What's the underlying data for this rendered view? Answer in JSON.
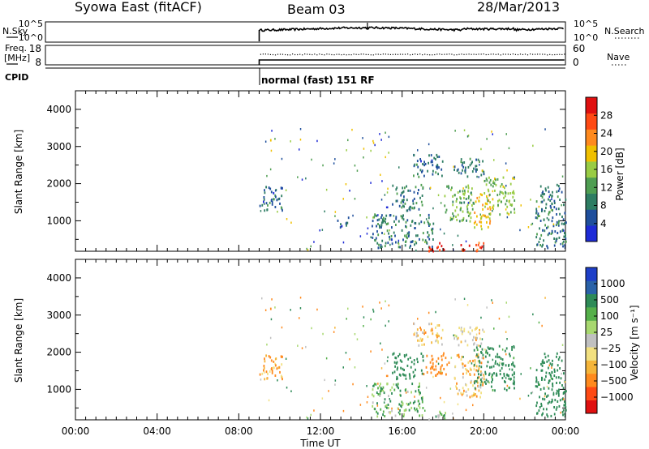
{
  "header": {
    "title": "Syowa East (fitACF)",
    "beam": "Beam 03",
    "date": "28/Mar/2013"
  },
  "noise_panel": {
    "left_label": "N.Sky",
    "left_ticks": [
      "10^5",
      "10^0"
    ],
    "right_ticks": [
      "10^5",
      "10^0"
    ],
    "right_label": "N.Search"
  },
  "freq_panel": {
    "left_label_line1": "Freq.",
    "left_label_line2": "[MHz]",
    "left_ticks": [
      "18",
      "8"
    ],
    "right_ticks": [
      "60",
      "0"
    ],
    "right_label": "Nave"
  },
  "cpid": {
    "label": "CPID",
    "program": "normal (fast) 151 RF"
  },
  "colors": {
    "power_scale": [
      "#1e2bd6",
      "#1f4f9c",
      "#2e7d63",
      "#4f9e52",
      "#99cc44",
      "#f0c000",
      "#ff8a1e",
      "#ff4a14",
      "#e01010"
    ],
    "velocity_scale": [
      "#e01010",
      "#ff4a14",
      "#ff8a1e",
      "#f5b53a",
      "#f2e080",
      "#c0c0c0",
      "#a8d870",
      "#55b04a",
      "#2e8b57",
      "#2a62a8",
      "#1e3fc8"
    ]
  },
  "chart_data": [
    {
      "type": "heatmap",
      "name": "power",
      "xlabel": "",
      "ylabel": "Slant Range [km]",
      "x_ticks": [
        "00:00",
        "04:00",
        "08:00",
        "12:00",
        "16:00",
        "20:00",
        "00:00"
      ],
      "xlim_hours": [
        0,
        24
      ],
      "ylim_km": [
        180,
        4500
      ],
      "y_ticks": [
        1000,
        2000,
        3000,
        4000
      ],
      "colorbar": {
        "label": "Power [dB]",
        "ticks": [
          "4",
          "8",
          "12",
          "16",
          "20",
          "24",
          "28"
        ],
        "range": [
          0,
          30
        ]
      },
      "blobs": [
        {
          "t0": 9.0,
          "t1": 10.2,
          "r0": 1300,
          "r1": 1950,
          "v": 7
        },
        {
          "t0": 9.5,
          "t1": 9.6,
          "r0": 3100,
          "r1": 3400,
          "v": 18
        },
        {
          "t0": 12.8,
          "t1": 13.4,
          "r0": 850,
          "r1": 1150,
          "v": 6
        },
        {
          "t0": 14.5,
          "t1": 17.5,
          "r0": 300,
          "r1": 1200,
          "v": 8
        },
        {
          "t0": 15.5,
          "t1": 17.0,
          "r0": 1300,
          "r1": 2000,
          "v": 9
        },
        {
          "t0": 16.5,
          "t1": 18.0,
          "r0": 2200,
          "r1": 2800,
          "v": 7
        },
        {
          "t0": 17.2,
          "t1": 18.2,
          "r0": 200,
          "r1": 450,
          "v": 27
        },
        {
          "t0": 18.0,
          "t1": 19.5,
          "r0": 1000,
          "r1": 2000,
          "v": 12
        },
        {
          "t0": 18.8,
          "t1": 20.0,
          "r0": 200,
          "r1": 450,
          "v": 26
        },
        {
          "t0": 19.5,
          "t1": 20.3,
          "r0": 800,
          "r1": 1800,
          "v": 18
        },
        {
          "t0": 20.0,
          "t1": 21.5,
          "r0": 1200,
          "r1": 2200,
          "v": 14
        },
        {
          "t0": 18.5,
          "t1": 20.0,
          "r0": 2200,
          "r1": 2700,
          "v": 7
        },
        {
          "t0": 22.5,
          "t1": 24.0,
          "r0": 300,
          "r1": 2000,
          "v": 8
        }
      ]
    },
    {
      "type": "heatmap",
      "name": "velocity",
      "xlabel": "Time UT",
      "ylabel": "Slant Range [km]",
      "x_ticks": [
        "00:00",
        "04:00",
        "08:00",
        "12:00",
        "16:00",
        "20:00",
        "00:00"
      ],
      "xlim_hours": [
        0,
        24
      ],
      "ylim_km": [
        180,
        4500
      ],
      "y_ticks": [
        1000,
        2000,
        3000,
        4000
      ],
      "colorbar": {
        "label": "Velocity [m s⁻¹]",
        "ticks": [
          "1000",
          "500",
          "100",
          "25",
          "−25",
          "−100",
          "−500",
          "−1000"
        ]
      },
      "blobs": [
        {
          "t0": 9.0,
          "t1": 10.2,
          "r0": 1300,
          "r1": 1950,
          "v": -100
        },
        {
          "t0": 9.5,
          "t1": 9.6,
          "r0": 3100,
          "r1": 3400,
          "v": -150
        },
        {
          "t0": 14.5,
          "t1": 17.0,
          "r0": 300,
          "r1": 1200,
          "v": 80
        },
        {
          "t0": 15.5,
          "t1": 17.0,
          "r0": 1300,
          "r1": 2000,
          "v": 200
        },
        {
          "t0": 17.0,
          "t1": 18.3,
          "r0": 1400,
          "r1": 2000,
          "v": -300
        },
        {
          "t0": 16.5,
          "t1": 18.0,
          "r0": 2200,
          "r1": 2800,
          "v": -60
        },
        {
          "t0": 17.2,
          "t1": 18.2,
          "r0": 200,
          "r1": 450,
          "v": 40
        },
        {
          "t0": 18.5,
          "t1": 20.0,
          "r0": 800,
          "r1": 2000,
          "v": -80
        },
        {
          "t0": 19.5,
          "t1": 21.5,
          "r0": 1000,
          "r1": 2200,
          "v": 150
        },
        {
          "t0": 18.5,
          "t1": 20.0,
          "r0": 2200,
          "r1": 2700,
          "v": -40
        },
        {
          "t0": 22.5,
          "t1": 24.0,
          "r0": 300,
          "r1": 2000,
          "v": 300
        }
      ]
    }
  ]
}
